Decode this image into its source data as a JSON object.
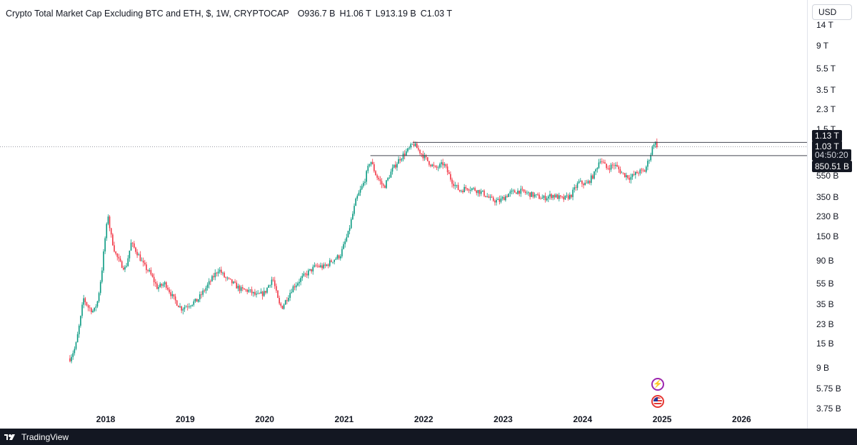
{
  "legend": {
    "title": "Crypto Total Market Cap Excluding BTC and ETH, $, 1W, CRYPTOCAP",
    "open_key": "O",
    "open_val": "936.7 B",
    "high_key": "H",
    "high_val": "1.06 T",
    "low_key": "L",
    "low_val": "913.19 B",
    "close_key": "C",
    "close_val": "1.03 T"
  },
  "currency": "USD",
  "price_axis": [
    "14 T",
    "9 T",
    "5.5 T",
    "3.5 T",
    "2.3 T",
    "1.5 T",
    "550 B",
    "350 B",
    "230 B",
    "150 B",
    "90 B",
    "55 B",
    "35 B",
    "23 B",
    "15 B",
    "9 B",
    "5.75 B",
    "3.75 B"
  ],
  "price_tags": {
    "upper_line": "1.13 T",
    "last_price": "1.03 T",
    "countdown": "04:50:20",
    "lower_line": "850.51 B"
  },
  "time_axis": [
    "2018",
    "2019",
    "2020",
    "2021",
    "2022",
    "2023",
    "2024",
    "2025",
    "2026"
  ],
  "brand": "TradingView",
  "colors": {
    "up": "#26a69a",
    "down": "#ef5350",
    "up_candle": "#089981",
    "down_candle": "#f23645",
    "text": "#131722"
  },
  "chart_data": {
    "type": "candlestick",
    "title": "Crypto Total Market Cap Excluding BTC and ETH, $, 1W, CRYPTOCAP",
    "scale": "log",
    "interval": "1W",
    "ylim": [
      3750000000.0,
      14000000000000.0
    ],
    "xlim": [
      2017.4,
      2026.6
    ],
    "horizontal_lines": [
      1130000000000.0,
      850510000000.0
    ],
    "last_price": 1030000000000.0,
    "grid": false,
    "keypoints": [
      {
        "t": 2017.55,
        "v": 11000000000.0
      },
      {
        "t": 2017.62,
        "v": 14000000000.0
      },
      {
        "t": 2017.68,
        "v": 25000000000.0
      },
      {
        "t": 2017.72,
        "v": 40000000000.0
      },
      {
        "t": 2017.78,
        "v": 33000000000.0
      },
      {
        "t": 2017.85,
        "v": 30000000000.0
      },
      {
        "t": 2017.9,
        "v": 38000000000.0
      },
      {
        "t": 2017.95,
        "v": 70000000000.0
      },
      {
        "t": 2017.99,
        "v": 140000000000.0
      },
      {
        "t": 2018.03,
        "v": 240000000000.0
      },
      {
        "t": 2018.06,
        "v": 160000000000.0
      },
      {
        "t": 2018.12,
        "v": 105000000000.0
      },
      {
        "t": 2018.18,
        "v": 85000000000.0
      },
      {
        "t": 2018.25,
        "v": 75000000000.0
      },
      {
        "t": 2018.32,
        "v": 130000000000.0
      },
      {
        "t": 2018.4,
        "v": 105000000000.0
      },
      {
        "t": 2018.48,
        "v": 80000000000.0
      },
      {
        "t": 2018.55,
        "v": 70000000000.0
      },
      {
        "t": 2018.65,
        "v": 50000000000.0
      },
      {
        "t": 2018.75,
        "v": 55000000000.0
      },
      {
        "t": 2018.85,
        "v": 40000000000.0
      },
      {
        "t": 2018.95,
        "v": 32000000000.0
      },
      {
        "t": 2019.05,
        "v": 35000000000.0
      },
      {
        "t": 2019.15,
        "v": 38000000000.0
      },
      {
        "t": 2019.3,
        "v": 55000000000.0
      },
      {
        "t": 2019.42,
        "v": 75000000000.0
      },
      {
        "t": 2019.5,
        "v": 62000000000.0
      },
      {
        "t": 2019.6,
        "v": 55000000000.0
      },
      {
        "t": 2019.7,
        "v": 48000000000.0
      },
      {
        "t": 2019.8,
        "v": 47000000000.0
      },
      {
        "t": 2019.9,
        "v": 42000000000.0
      },
      {
        "t": 2020.0,
        "v": 45000000000.0
      },
      {
        "t": 2020.1,
        "v": 62000000000.0
      },
      {
        "t": 2020.18,
        "v": 35000000000.0
      },
      {
        "t": 2020.22,
        "v": 33000000000.0
      },
      {
        "t": 2020.35,
        "v": 50000000000.0
      },
      {
        "t": 2020.45,
        "v": 60000000000.0
      },
      {
        "t": 2020.55,
        "v": 70000000000.0
      },
      {
        "t": 2020.65,
        "v": 80000000000.0
      },
      {
        "t": 2020.75,
        "v": 78000000000.0
      },
      {
        "t": 2020.85,
        "v": 90000000000.0
      },
      {
        "t": 2020.95,
        "v": 100000000000.0
      },
      {
        "t": 2021.05,
        "v": 160000000000.0
      },
      {
        "t": 2021.15,
        "v": 330000000000.0
      },
      {
        "t": 2021.25,
        "v": 480000000000.0
      },
      {
        "t": 2021.33,
        "v": 780000000000.0
      },
      {
        "t": 2021.4,
        "v": 560000000000.0
      },
      {
        "t": 2021.5,
        "v": 430000000000.0
      },
      {
        "t": 2021.6,
        "v": 620000000000.0
      },
      {
        "t": 2021.7,
        "v": 800000000000.0
      },
      {
        "t": 2021.8,
        "v": 950000000000.0
      },
      {
        "t": 2021.87,
        "v": 1100000000000.0
      },
      {
        "t": 2021.95,
        "v": 930000000000.0
      },
      {
        "t": 2022.05,
        "v": 760000000000.0
      },
      {
        "t": 2022.15,
        "v": 640000000000.0
      },
      {
        "t": 2022.25,
        "v": 720000000000.0
      },
      {
        "t": 2022.35,
        "v": 500000000000.0
      },
      {
        "t": 2022.45,
        "v": 400000000000.0
      },
      {
        "t": 2022.55,
        "v": 430000000000.0
      },
      {
        "t": 2022.65,
        "v": 410000000000.0
      },
      {
        "t": 2022.75,
        "v": 380000000000.0
      },
      {
        "t": 2022.85,
        "v": 330000000000.0
      },
      {
        "t": 2022.95,
        "v": 320000000000.0
      },
      {
        "t": 2023.08,
        "v": 380000000000.0
      },
      {
        "t": 2023.2,
        "v": 400000000000.0
      },
      {
        "t": 2023.35,
        "v": 370000000000.0
      },
      {
        "t": 2023.5,
        "v": 340000000000.0
      },
      {
        "t": 2023.62,
        "v": 365000000000.0
      },
      {
        "t": 2023.75,
        "v": 335000000000.0
      },
      {
        "t": 2023.85,
        "v": 360000000000.0
      },
      {
        "t": 2023.95,
        "v": 480000000000.0
      },
      {
        "t": 2024.05,
        "v": 460000000000.0
      },
      {
        "t": 2024.15,
        "v": 580000000000.0
      },
      {
        "t": 2024.22,
        "v": 800000000000.0
      },
      {
        "t": 2024.3,
        "v": 650000000000.0
      },
      {
        "t": 2024.4,
        "v": 700000000000.0
      },
      {
        "t": 2024.5,
        "v": 580000000000.0
      },
      {
        "t": 2024.6,
        "v": 530000000000.0
      },
      {
        "t": 2024.7,
        "v": 600000000000.0
      },
      {
        "t": 2024.78,
        "v": 610000000000.0
      },
      {
        "t": 2024.85,
        "v": 850000000000.0
      },
      {
        "t": 2024.9,
        "v": 1150000000000.0
      },
      {
        "t": 2024.95,
        "v": 1030000000000.0
      }
    ]
  }
}
